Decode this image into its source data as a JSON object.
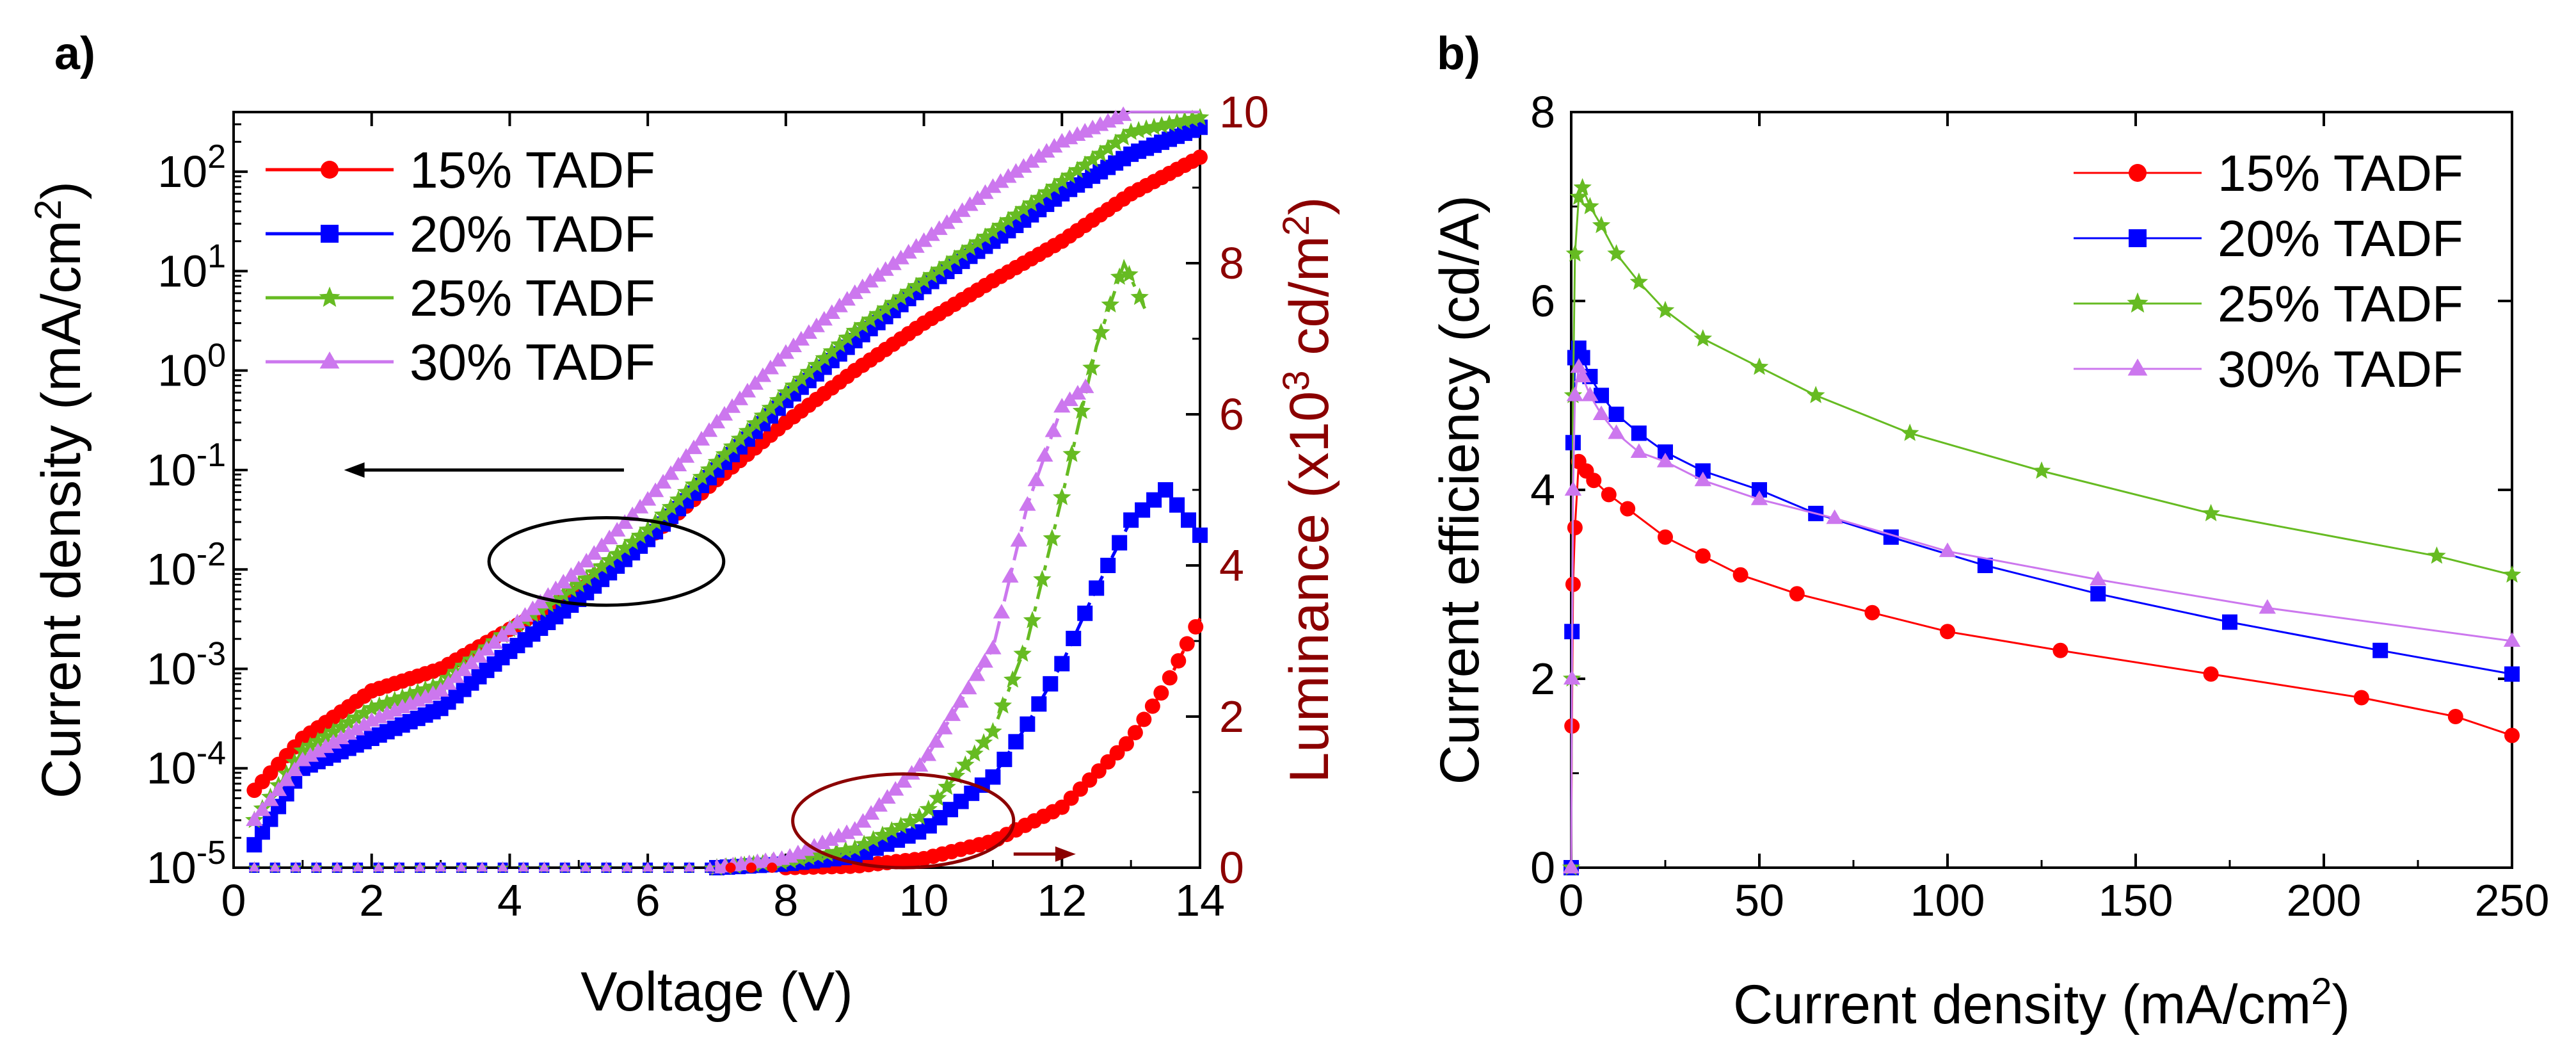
{
  "chart_data": [
    {
      "panel": "a)",
      "type": "line",
      "xlabel": "Voltage (V)",
      "ylabel_left": {
        "main": "Current density (mA/cm",
        "sup": "2",
        "tail": ")"
      },
      "ylabel_right": {
        "main": "Luminance (x10",
        "sup1": "3",
        "mid": " cd/m",
        "sup2": "2",
        "tail": ")"
      },
      "xlim": [
        0,
        14
      ],
      "xticks": [
        "0",
        "2",
        "4",
        "6",
        "8",
        "10",
        "12",
        "14"
      ],
      "ylim_left_log10": [
        -5,
        2.6
      ],
      "yticks_left": [
        {
          "base": "10",
          "exp": "-5"
        },
        {
          "base": "10",
          "exp": "-4"
        },
        {
          "base": "10",
          "exp": "-3"
        },
        {
          "base": "10",
          "exp": "-2"
        },
        {
          "base": "10",
          "exp": "-1"
        },
        {
          "base": "10",
          "exp": "0"
        },
        {
          "base": "10",
          "exp": "1"
        },
        {
          "base": "10",
          "exp": "2"
        }
      ],
      "ylim_right": [
        0,
        10
      ],
      "yticks_right": [
        "0",
        "2",
        "4",
        "6",
        "8",
        "10"
      ],
      "annotations": [
        {
          "kind": "ellipse",
          "color": "#000000",
          "center": [
            5.4,
            -1.92
          ],
          "radii": [
            1.7,
            0.44
          ],
          "arrow_to_x": 1.6,
          "arrow_y_log10": -1.0,
          "points_to": "left axis"
        },
        {
          "kind": "ellipse",
          "color": "#8b0000",
          "center": [
            9.7,
            0.62
          ],
          "radii": [
            1.6,
            0.62
          ],
          "arrow_to_x": 12.2,
          "arrow_y_lum": 0.18,
          "points_to": "right axis"
        }
      ],
      "legend": [
        {
          "label": "15% TADF",
          "color": "#ff0000",
          "marker": "circle"
        },
        {
          "label": "20% TADF",
          "color": "#0000ff",
          "marker": "square"
        },
        {
          "label": "25% TADF",
          "color": "#66bb22",
          "marker": "star"
        },
        {
          "label": "30% TADF",
          "color": "#cc77ee",
          "marker": "triangle"
        }
      ],
      "current_density_series": [
        {
          "name": "15% TADF",
          "x": [
            0.3,
            1,
            2,
            3,
            4,
            5,
            6,
            7,
            8,
            9,
            10,
            11,
            12,
            13,
            14
          ],
          "y": [
            6e-05,
            0.0002,
            0.0006,
            0.001,
            0.0025,
            0.006,
            0.02,
            0.08,
            0.3,
            1,
            3,
            8,
            20,
            60,
            140
          ]
        },
        {
          "name": "20% TADF",
          "x": [
            0.3,
            1,
            2,
            3,
            4,
            5,
            6,
            7,
            8,
            9,
            10,
            11,
            12,
            13,
            14
          ],
          "y": [
            1.7e-05,
            0.0001,
            0.0002,
            0.0004,
            0.0015,
            0.005,
            0.02,
            0.1,
            0.5,
            2,
            7,
            20,
            60,
            150,
            280
          ]
        },
        {
          "name": "25% TADF",
          "x": [
            0.3,
            1,
            2,
            3,
            4,
            5,
            6,
            7,
            8,
            9,
            10,
            11,
            12,
            13,
            14
          ],
          "y": [
            3e-05,
            0.00015,
            0.0004,
            0.0007,
            0.0025,
            0.007,
            0.025,
            0.12,
            0.6,
            2.5,
            8,
            25,
            80,
            250,
            350
          ]
        },
        {
          "name": "30% TADF",
          "x": [
            0.3,
            1,
            2,
            3,
            4,
            5,
            6,
            7,
            8,
            9,
            10,
            11,
            12,
            13,
            14
          ],
          "y": [
            3e-05,
            0.00012,
            0.0003,
            0.0006,
            0.0025,
            0.01,
            0.05,
            0.3,
            1.5,
            6,
            20,
            70,
            200,
            400,
            400
          ]
        }
      ],
      "luminance_series": [
        {
          "name": "15% TADF",
          "x": [
            8,
            9,
            10,
            11,
            12,
            13,
            13.5,
            14
          ],
          "y": [
            0,
            0.02,
            0.12,
            0.35,
            0.8,
            1.7,
            2.4,
            3.3
          ]
        },
        {
          "name": "20% TADF",
          "x": [
            7,
            8,
            9,
            10,
            11,
            11.5,
            12,
            12.5,
            13,
            13.5,
            14
          ],
          "y": [
            0,
            0.05,
            0.15,
            0.5,
            1.2,
            1.9,
            2.7,
            3.7,
            4.6,
            5.0,
            4.4
          ]
        },
        {
          "name": "25% TADF",
          "x": [
            7,
            8,
            9,
            10,
            11,
            11.5,
            12,
            12.5,
            12.9,
            13.2
          ],
          "y": [
            0,
            0.08,
            0.25,
            0.7,
            1.8,
            3.0,
            4.9,
            6.9,
            8.0,
            7.4
          ]
        },
        {
          "name": "30% TADF",
          "x": [
            7,
            8,
            9,
            10,
            11,
            11.5,
            12,
            12.4
          ],
          "y": [
            0,
            0.12,
            0.5,
            1.4,
            2.9,
            4.8,
            6.1,
            6.4
          ]
        }
      ]
    },
    {
      "panel": "b)",
      "type": "line",
      "xlabel": {
        "main": "Current density (mA/cm",
        "sup": "2",
        "tail": ")"
      },
      "ylabel": "Current efficiency (cd/A)",
      "xlim": [
        0,
        250
      ],
      "xticks": [
        "0",
        "50",
        "100",
        "150",
        "200",
        "250"
      ],
      "ylim": [
        0,
        8
      ],
      "yticks": [
        "0",
        "2",
        "4",
        "6",
        "8"
      ],
      "legend": [
        {
          "label": "15% TADF",
          "color": "#ff0000",
          "marker": "circle"
        },
        {
          "label": "20% TADF",
          "color": "#0000ff",
          "marker": "square"
        },
        {
          "label": "25% TADF",
          "color": "#66bb22",
          "marker": "star"
        },
        {
          "label": "30% TADF",
          "color": "#cc77ee",
          "marker": "triangle"
        }
      ],
      "series": [
        {
          "name": "15% TADF",
          "x": [
            0,
            0.2,
            0.5,
            1,
            2,
            4,
            6,
            10,
            15,
            25,
            35,
            45,
            60,
            80,
            100,
            130,
            170,
            210,
            235,
            250
          ],
          "y": [
            0,
            1.5,
            3,
            3.6,
            4.3,
            4.2,
            4.1,
            3.95,
            3.8,
            3.5,
            3.3,
            3.1,
            2.9,
            2.7,
            2.5,
            2.3,
            2.05,
            1.8,
            1.6,
            1.4
          ]
        },
        {
          "name": "20% TADF",
          "x": [
            0,
            0.2,
            0.5,
            1,
            2,
            3,
            5,
            8,
            12,
            18,
            25,
            35,
            50,
            65,
            85,
            110,
            140,
            175,
            215,
            250
          ],
          "y": [
            0,
            2.5,
            4.5,
            5.4,
            5.5,
            5.4,
            5.2,
            5.0,
            4.8,
            4.6,
            4.4,
            4.2,
            4.0,
            3.75,
            3.5,
            3.2,
            2.9,
            2.6,
            2.3,
            2.05
          ]
        },
        {
          "name": "25% TADF",
          "x": [
            0,
            0.2,
            0.5,
            1,
            2,
            3,
            5,
            8,
            12,
            18,
            25,
            35,
            50,
            65,
            90,
            125,
            170,
            230,
            250
          ],
          "y": [
            0,
            2,
            5,
            6.5,
            7.1,
            7.2,
            7.0,
            6.8,
            6.5,
            6.2,
            5.9,
            5.6,
            5.3,
            5.0,
            4.6,
            4.2,
            3.75,
            3.3,
            3.1
          ]
        },
        {
          "name": "30% TADF",
          "x": [
            0,
            0.2,
            0.5,
            1,
            2,
            3,
            5,
            8,
            12,
            18,
            25,
            35,
            50,
            70,
            100,
            140,
            185,
            250
          ],
          "y": [
            0,
            2,
            4,
            5.0,
            5.3,
            5.2,
            5.0,
            4.8,
            4.6,
            4.4,
            4.3,
            4.1,
            3.9,
            3.7,
            3.35,
            3.05,
            2.75,
            2.4
          ]
        }
      ]
    }
  ]
}
